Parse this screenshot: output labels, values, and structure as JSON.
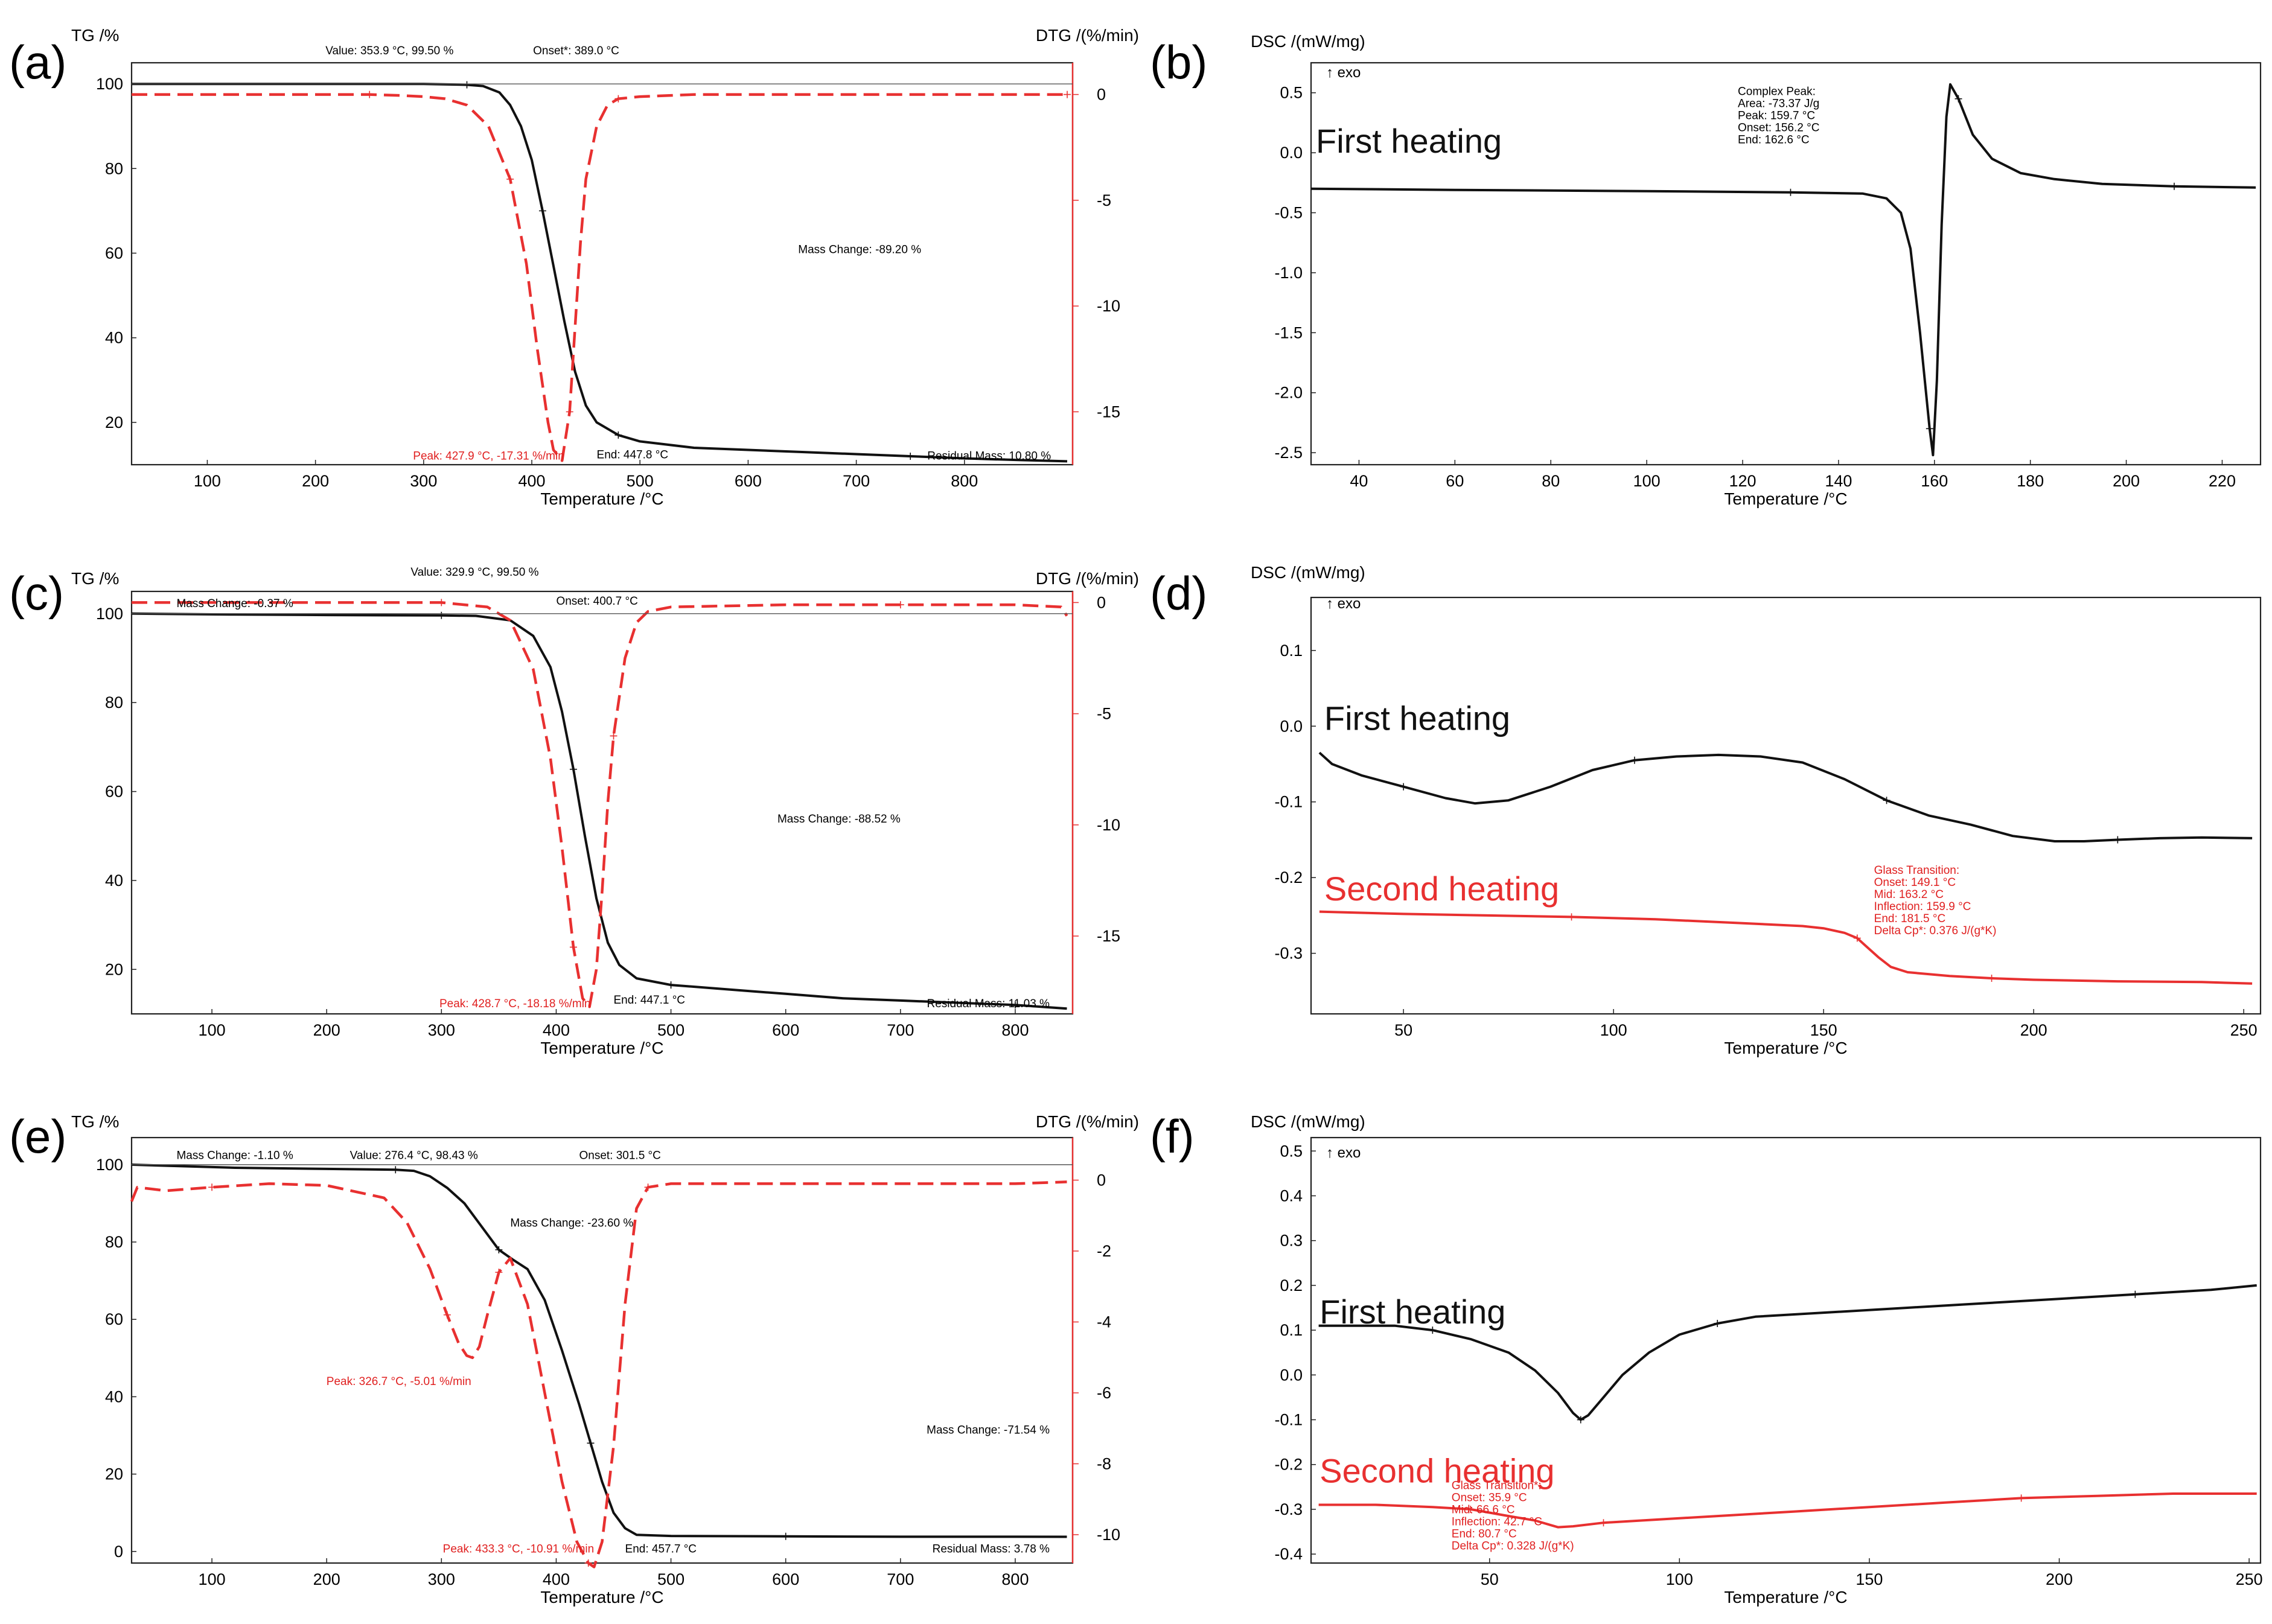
{
  "colors": {
    "black": "#111111",
    "red": "#e83030",
    "frame": "#222222"
  },
  "chart_data": [
    {
      "id": "a",
      "letter": "(a)",
      "type": "line",
      "ylabel_left": "TG /%",
      "ylabel_right": "DTG /(%/min)",
      "xlabel": "Temperature /°C",
      "xlim": [
        30,
        900
      ],
      "ylim": [
        10,
        105
      ],
      "y2lim": [
        -17.5,
        1.5
      ],
      "xticks": [
        "100",
        "200",
        "300",
        "400",
        "500",
        "600",
        "700",
        "800"
      ],
      "yticks": [
        "20",
        "40",
        "60",
        "80",
        "100"
      ],
      "y2ticks": [
        "0",
        "-5",
        "-10",
        "-15"
      ],
      "series": [
        {
          "name": "TG",
          "axis": "left",
          "style": "solid",
          "color": "#111111",
          "x": [
            30,
            200,
            300,
            340,
            355,
            370,
            380,
            390,
            400,
            410,
            420,
            430,
            440,
            450,
            460,
            480,
            500,
            550,
            600,
            650,
            700,
            750,
            800,
            850,
            895
          ],
          "y": [
            100,
            100,
            100,
            99.8,
            99.5,
            98,
            95,
            90,
            82,
            70,
            57,
            44,
            32,
            24,
            20,
            17,
            15.5,
            14,
            13.5,
            13,
            12.5,
            12,
            11.5,
            11.1,
            10.8
          ]
        },
        {
          "name": "DTG",
          "axis": "right",
          "style": "dashed",
          "color": "#e83030",
          "x": [
            30,
            100,
            200,
            250,
            280,
            300,
            320,
            340,
            360,
            380,
            395,
            405,
            415,
            420,
            428,
            435,
            440,
            445,
            450,
            460,
            470,
            480,
            500,
            550,
            600,
            700,
            800,
            895
          ],
          "y": [
            0,
            0,
            0,
            0,
            -0.05,
            -0.1,
            -0.2,
            -0.5,
            -1.5,
            -4,
            -8,
            -12,
            -15.5,
            -16.8,
            -17.31,
            -15,
            -11,
            -7,
            -4,
            -1.5,
            -0.5,
            -0.2,
            -0.1,
            0,
            0,
            0,
            0,
            0
          ]
        }
      ],
      "annotations": [
        {
          "text": "Value: 353.9 °C, 99.50 %",
          "color": "black"
        },
        {
          "text": "Onset*: 389.0 °C",
          "color": "black"
        },
        {
          "text": "Mass Change: -89.20 %",
          "color": "black"
        },
        {
          "text": "Peak: 427.9 °C, -17.31 %/min",
          "color": "red"
        },
        {
          "text": "End: 447.8 °C",
          "color": "black"
        },
        {
          "text": "Residual Mass: 10.80 %",
          "color": "black"
        }
      ]
    },
    {
      "id": "b",
      "letter": "(b)",
      "type": "line",
      "ylabel_left": "DSC /(mW/mg)",
      "exo_label": "↑ exo",
      "xlabel": "Temperature /°C",
      "xlim": [
        30,
        228
      ],
      "ylim": [
        -2.6,
        0.75
      ],
      "xticks": [
        "40",
        "60",
        "80",
        "100",
        "120",
        "140",
        "160",
        "180",
        "200",
        "220"
      ],
      "yticks": [
        "0.5",
        "0.0",
        "-0.5",
        "-1.0",
        "-1.5",
        "-2.0",
        "-2.5"
      ],
      "series": [
        {
          "name": "First heating",
          "axis": "left",
          "style": "solid",
          "color": "#111111",
          "x": [
            30,
            60,
            100,
            130,
            145,
            150,
            153,
            155,
            157,
            159,
            159.7,
            160.5,
            161.5,
            162.5,
            163.3,
            165,
            168,
            172,
            178,
            185,
            195,
            210,
            227
          ],
          "y": [
            -0.3,
            -0.31,
            -0.32,
            -0.33,
            -0.34,
            -0.38,
            -0.5,
            -0.8,
            -1.5,
            -2.3,
            -2.52,
            -1.9,
            -0.6,
            0.3,
            0.57,
            0.45,
            0.15,
            -0.05,
            -0.17,
            -0.22,
            -0.26,
            -0.28,
            -0.29
          ]
        }
      ],
      "annotations": [
        {
          "text": "Complex Peak:",
          "color": "black"
        },
        {
          "text": "Area:    -73.37 J/g",
          "color": "black"
        },
        {
          "text": "Peak:    159.7 °C",
          "color": "black"
        },
        {
          "text": "Onset:   156.2 °C",
          "color": "black"
        },
        {
          "text": "End:     162.6 °C",
          "color": "black"
        }
      ],
      "heating_labels": [
        {
          "text": "First  heating",
          "color": "black"
        }
      ]
    },
    {
      "id": "c",
      "letter": "(c)",
      "type": "line",
      "ylabel_left": "TG /%",
      "ylabel_right": "DTG /(%/min)",
      "xlabel": "Temperature /°C",
      "xlim": [
        30,
        850
      ],
      "ylim": [
        10,
        105
      ],
      "y2lim": [
        -18.5,
        0.5
      ],
      "xticks": [
        "100",
        "200",
        "300",
        "400",
        "500",
        "600",
        "700",
        "800"
      ],
      "yticks": [
        "20",
        "40",
        "60",
        "80",
        "100"
      ],
      "y2ticks": [
        "0",
        "-5",
        "-10",
        "-15"
      ],
      "series": [
        {
          "name": "TG",
          "axis": "left",
          "style": "solid",
          "color": "#111111",
          "x": [
            30,
            120,
            200,
            300,
            330,
            360,
            380,
            395,
            405,
            415,
            425,
            435,
            445,
            455,
            470,
            500,
            550,
            600,
            650,
            700,
            750,
            800,
            845
          ],
          "y": [
            100,
            99.8,
            99.7,
            99.6,
            99.5,
            98.5,
            95,
            88,
            78,
            65,
            50,
            36,
            26,
            21,
            18,
            16.5,
            15.5,
            14.5,
            13.5,
            13,
            12.5,
            12,
            11.2
          ]
        },
        {
          "name": "DTG",
          "axis": "right",
          "style": "dashed",
          "color": "#e83030",
          "x": [
            30,
            100,
            200,
            300,
            340,
            360,
            380,
            395,
            405,
            415,
            423,
            429,
            435,
            440,
            445,
            450,
            460,
            470,
            480,
            500,
            600,
            700,
            800,
            840,
            845
          ],
          "y": [
            0,
            0,
            0,
            0,
            -0.2,
            -0.8,
            -3,
            -7,
            -11,
            -15.5,
            -17.8,
            -18.18,
            -16.5,
            -13,
            -9,
            -6,
            -2.5,
            -0.9,
            -0.4,
            -0.2,
            -0.1,
            -0.1,
            -0.1,
            -0.2,
            -0.6
          ]
        }
      ],
      "annotations": [
        {
          "text": "Value: 329.9 °C, 99.50 %",
          "color": "black"
        },
        {
          "text": "Mass Change: -0.37 %",
          "color": "black"
        },
        {
          "text": "Onset: 400.7 °C",
          "color": "black"
        },
        {
          "text": "Mass Change: -88.52 %",
          "color": "black"
        },
        {
          "text": "Peak: 428.7 °C, -18.18 %/min",
          "color": "red"
        },
        {
          "text": "End: 447.1 °C",
          "color": "black"
        },
        {
          "text": "Residual Mass: 11.03 %",
          "color": "black"
        }
      ]
    },
    {
      "id": "d",
      "letter": "(d)",
      "type": "line",
      "ylabel_left": "DSC /(mW/mg)",
      "exo_label": "↑ exo",
      "xlabel": "Temperature /°C",
      "xlim": [
        28,
        254
      ],
      "ylim": [
        -0.38,
        0.17
      ],
      "xticks": [
        "50",
        "100",
        "150",
        "200",
        "250"
      ],
      "yticks": [
        "0.1",
        "0.0",
        "-0.1",
        "-0.2",
        "-0.3"
      ],
      "series": [
        {
          "name": "First heating",
          "axis": "left",
          "style": "solid",
          "color": "#111111",
          "x": [
            30,
            33,
            40,
            50,
            60,
            67,
            75,
            85,
            95,
            105,
            115,
            125,
            135,
            145,
            155,
            165,
            175,
            185,
            195,
            205,
            212,
            220,
            230,
            240,
            252
          ],
          "y": [
            -0.035,
            -0.05,
            -0.065,
            -0.08,
            -0.095,
            -0.102,
            -0.098,
            -0.08,
            -0.058,
            -0.045,
            -0.04,
            -0.038,
            -0.04,
            -0.048,
            -0.07,
            -0.098,
            -0.118,
            -0.13,
            -0.145,
            -0.152,
            -0.152,
            -0.15,
            -0.148,
            -0.147,
            -0.148
          ]
        },
        {
          "name": "Second heating",
          "axis": "left",
          "style": "solid",
          "color": "#e83030",
          "x": [
            30,
            50,
            70,
            90,
            110,
            130,
            145,
            150,
            155,
            158,
            160,
            163,
            166,
            170,
            180,
            190,
            200,
            220,
            240,
            252
          ],
          "y": [
            -0.245,
            -0.248,
            -0.25,
            -0.252,
            -0.255,
            -0.26,
            -0.264,
            -0.267,
            -0.273,
            -0.28,
            -0.29,
            -0.305,
            -0.318,
            -0.325,
            -0.33,
            -0.333,
            -0.335,
            -0.337,
            -0.338,
            -0.34
          ]
        }
      ],
      "annotations": [
        {
          "text": "Glass Transition:",
          "color": "red"
        },
        {
          "text": "Onset:       149.1 °C",
          "color": "red"
        },
        {
          "text": "Mid:         163.2 °C",
          "color": "red"
        },
        {
          "text": "Inflection:  159.9 °C",
          "color": "red"
        },
        {
          "text": "End:         181.5 °C",
          "color": "red"
        },
        {
          "text": "Delta Cp*:   0.376 J/(g*K)",
          "color": "red"
        }
      ],
      "heating_labels": [
        {
          "text": "First  heating",
          "color": "black"
        },
        {
          "text": "Second  heating",
          "color": "red"
        }
      ]
    },
    {
      "id": "e",
      "letter": "(e)",
      "type": "line",
      "ylabel_left": "TG /%",
      "ylabel_right": "DTG /(%/min)",
      "xlabel": "Temperature /°C",
      "xlim": [
        30,
        850
      ],
      "ylim": [
        -3,
        107
      ],
      "y2lim": [
        -10.8,
        1.2
      ],
      "xticks": [
        "100",
        "200",
        "300",
        "400",
        "500",
        "600",
        "700",
        "800"
      ],
      "yticks": [
        "0",
        "20",
        "40",
        "60",
        "80",
        "100"
      ],
      "y2ticks": [
        "0",
        "-2",
        "-4",
        "-6",
        "-8",
        "-10"
      ],
      "series": [
        {
          "name": "TG",
          "axis": "left",
          "style": "solid",
          "color": "#111111",
          "x": [
            30,
            120,
            200,
            260,
            276,
            290,
            305,
            320,
            335,
            350,
            362,
            375,
            390,
            405,
            420,
            430,
            440,
            450,
            460,
            470,
            500,
            600,
            700,
            800,
            845
          ],
          "y": [
            100,
            99.2,
            98.9,
            98.7,
            98.4,
            97,
            94,
            90,
            84,
            78,
            75.5,
            73,
            65,
            52,
            38,
            28,
            18,
            10,
            6,
            4.3,
            4,
            3.9,
            3.8,
            3.8,
            3.78
          ]
        },
        {
          "name": "DTG",
          "axis": "right",
          "style": "dashed",
          "color": "#e83030",
          "x": [
            30,
            35,
            60,
            100,
            150,
            200,
            250,
            270,
            290,
            305,
            315,
            322,
            327,
            333,
            340,
            350,
            360,
            375,
            390,
            405,
            418,
            428,
            433,
            440,
            450,
            460,
            470,
            480,
            500,
            600,
            700,
            800,
            845
          ],
          "y": [
            -0.6,
            -0.2,
            -0.3,
            -0.2,
            -0.1,
            -0.15,
            -0.5,
            -1.2,
            -2.5,
            -3.8,
            -4.6,
            -4.95,
            -5.01,
            -4.7,
            -3.8,
            -2.6,
            -2.2,
            -3.5,
            -6,
            -8.5,
            -10.2,
            -10.8,
            -10.91,
            -10.2,
            -7.5,
            -3.5,
            -0.8,
            -0.2,
            -0.1,
            -0.1,
            -0.1,
            -0.1,
            -0.05
          ]
        }
      ],
      "annotations": [
        {
          "text": "Mass Change: -1.10 %",
          "color": "black"
        },
        {
          "text": "Value: 276.4 °C, 98.43 %",
          "color": "black"
        },
        {
          "text": "Onset: 301.5 °C",
          "color": "black"
        },
        {
          "text": "Mass Change: -23.60 %",
          "color": "black"
        },
        {
          "text": "Peak: 326.7 °C, -5.01 %/min",
          "color": "red"
        },
        {
          "text": "Mass Change: -71.54 %",
          "color": "black"
        },
        {
          "text": "Peak: 433.3 °C, -10.91 %/min",
          "color": "red"
        },
        {
          "text": "End: 457.7 °C",
          "color": "black"
        },
        {
          "text": "Residual Mass: 3.78 %",
          "color": "black"
        }
      ]
    },
    {
      "id": "f",
      "letter": "(f)",
      "type": "line",
      "ylabel_left": "DSC /(mW/mg)",
      "exo_label": "↑ exo",
      "xlabel": "Temperature /°C",
      "xlim": [
        3,
        253
      ],
      "ylim": [
        -0.42,
        0.53
      ],
      "xticks": [
        "50",
        "100",
        "150",
        "200",
        "250"
      ],
      "yticks": [
        "0.5",
        "0.4",
        "0.3",
        "0.2",
        "0.1",
        "0.0",
        "-0.1",
        "-0.2",
        "-0.3",
        "-0.4"
      ],
      "series": [
        {
          "name": "First heating",
          "axis": "left",
          "style": "solid",
          "color": "#111111",
          "x": [
            5,
            15,
            25,
            35,
            45,
            55,
            62,
            68,
            72,
            74,
            76,
            80,
            85,
            92,
            100,
            110,
            120,
            140,
            160,
            180,
            200,
            220,
            240,
            252
          ],
          "y": [
            0.11,
            0.11,
            0.11,
            0.1,
            0.08,
            0.05,
            0.01,
            -0.04,
            -0.085,
            -0.1,
            -0.09,
            -0.05,
            0.0,
            0.05,
            0.09,
            0.115,
            0.13,
            0.14,
            0.15,
            0.16,
            0.17,
            0.18,
            0.19,
            0.2
          ]
        },
        {
          "name": "Second heating",
          "axis": "left",
          "style": "solid",
          "color": "#e83030",
          "x": [
            5,
            20,
            35,
            45,
            55,
            62,
            66,
            68,
            72,
            80,
            90,
            110,
            130,
            150,
            170,
            190,
            210,
            230,
            252
          ],
          "y": [
            -0.29,
            -0.29,
            -0.295,
            -0.3,
            -0.315,
            -0.325,
            -0.335,
            -0.34,
            -0.338,
            -0.33,
            -0.325,
            -0.315,
            -0.305,
            -0.295,
            -0.285,
            -0.275,
            -0.27,
            -0.265,
            -0.265
          ]
        }
      ],
      "annotations": [
        {
          "text": "Glass Transition*:",
          "color": "red"
        },
        {
          "text": "Onset:       35.9 °C",
          "color": "red"
        },
        {
          "text": "Mid:         66.6 °C",
          "color": "red"
        },
        {
          "text": "Inflection:  42.7 °C",
          "color": "red"
        },
        {
          "text": "End:         80.7 °C",
          "color": "red"
        },
        {
          "text": "Delta Cp*:   0.328 J/(g*K)",
          "color": "red"
        }
      ],
      "heating_labels": [
        {
          "text": "First  heating",
          "color": "black"
        },
        {
          "text": "Second  heating",
          "color": "red"
        }
      ]
    }
  ]
}
